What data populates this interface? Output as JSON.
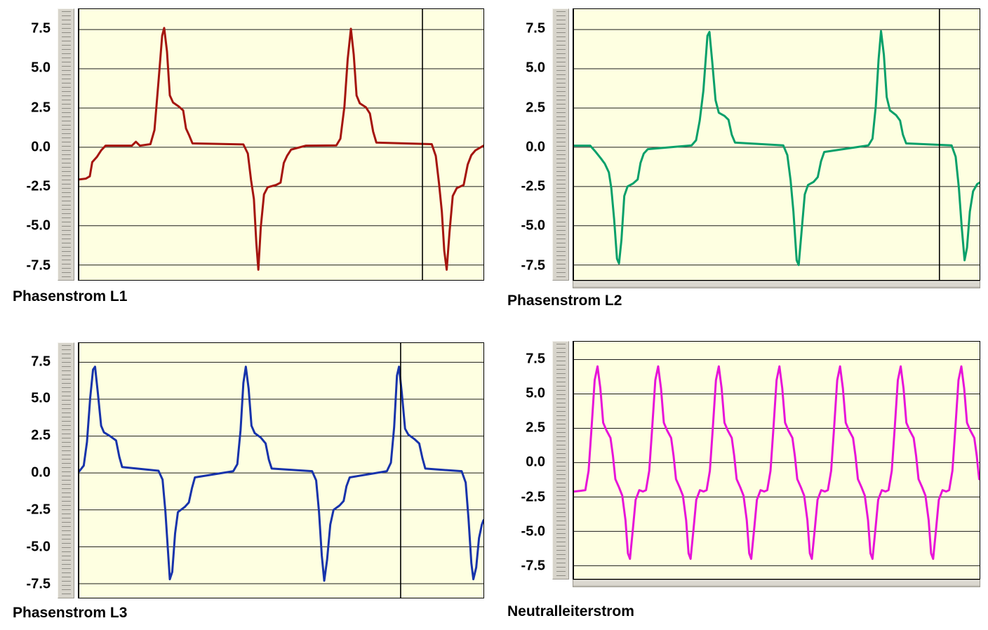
{
  "page": {
    "background": "#ffffff",
    "grid_line_color": "#1b1b1b",
    "plot_background": "#feffe1"
  },
  "chart_data": [
    {
      "type": "line",
      "title": "Phasenstrom L1",
      "color": "#a5150f",
      "plot_background": "#feffe1",
      "ylim": [
        -8.45,
        8.8
      ],
      "yticks": [
        7.5,
        5.0,
        2.5,
        0.0,
        -2.5,
        -5.0,
        -7.5
      ],
      "ytick_labels": [
        "7.5",
        "5.0",
        "2.5",
        "0.0",
        "-2.5",
        "-5.0",
        "-7.5"
      ],
      "xlabel": "",
      "ylabel": "",
      "grid": true,
      "legend": "none",
      "cursor_x_pct": 84.9,
      "bottom_strip": false,
      "points": [
        [
          0,
          -2.05
        ],
        [
          1.6,
          -2.0
        ],
        [
          2.6,
          -1.85
        ],
        [
          3.2,
          -0.95
        ],
        [
          4.4,
          -0.6
        ],
        [
          5.4,
          -0.2
        ],
        [
          6.5,
          0.1
        ],
        [
          13,
          0.1
        ],
        [
          14,
          0.35
        ],
        [
          15,
          0.1
        ],
        [
          17.6,
          0.2
        ],
        [
          18.6,
          1.1
        ],
        [
          19.6,
          4.2
        ],
        [
          20.5,
          7.1
        ],
        [
          21,
          7.6
        ],
        [
          21.7,
          6.1
        ],
        [
          22.4,
          3.3
        ],
        [
          23.2,
          2.85
        ],
        [
          24.6,
          2.6
        ],
        [
          25.7,
          2.35
        ],
        [
          26.4,
          1.2
        ],
        [
          27.2,
          0.75
        ],
        [
          28,
          0.25
        ],
        [
          40.6,
          0.18
        ],
        [
          41.7,
          -0.4
        ],
        [
          42.5,
          -2.1
        ],
        [
          43.2,
          -3.3
        ],
        [
          43.8,
          -6.1
        ],
        [
          44.3,
          -7.8
        ],
        [
          44.9,
          -5.1
        ],
        [
          45.7,
          -3.0
        ],
        [
          46.6,
          -2.55
        ],
        [
          48.7,
          -2.4
        ],
        [
          49.8,
          -2.25
        ],
        [
          50.6,
          -1.0
        ],
        [
          51.4,
          -0.55
        ],
        [
          52.4,
          -0.15
        ],
        [
          56,
          0.1
        ],
        [
          63.6,
          0.12
        ],
        [
          64.6,
          0.55
        ],
        [
          65.6,
          2.6
        ],
        [
          66.4,
          5.6
        ],
        [
          67.2,
          7.55
        ],
        [
          67.9,
          5.9
        ],
        [
          68.6,
          3.3
        ],
        [
          69.4,
          2.8
        ],
        [
          70.9,
          2.55
        ],
        [
          71.9,
          2.15
        ],
        [
          72.7,
          1.0
        ],
        [
          73.5,
          0.3
        ],
        [
          87.2,
          0.2
        ],
        [
          88.2,
          -0.55
        ],
        [
          89,
          -2.3
        ],
        [
          89.7,
          -4.1
        ],
        [
          90.3,
          -6.6
        ],
        [
          90.9,
          -7.8
        ],
        [
          91.6,
          -5.4
        ],
        [
          92.4,
          -3.1
        ],
        [
          93.4,
          -2.6
        ],
        [
          95.1,
          -2.4
        ],
        [
          96.1,
          -1.1
        ],
        [
          97,
          -0.5
        ],
        [
          98,
          -0.2
        ],
        [
          100,
          0.1
        ]
      ]
    },
    {
      "type": "line",
      "title": "Phasenstrom L2",
      "color": "#08a06a",
      "plot_background": "#feffe1",
      "ylim": [
        -8.45,
        8.8
      ],
      "yticks": [
        7.5,
        5.0,
        2.5,
        0.0,
        -2.5,
        -5.0,
        -7.5
      ],
      "ytick_labels": [
        "7.5",
        "5.0",
        "2.5",
        "0.0",
        "-2.5",
        "-5.0",
        "-7.5"
      ],
      "xlabel": "",
      "ylabel": "",
      "grid": true,
      "legend": "none",
      "cursor_x_pct": 90.1,
      "bottom_strip": true,
      "points": [
        [
          0,
          0.1
        ],
        [
          4,
          0.1
        ],
        [
          5.2,
          -0.25
        ],
        [
          6.6,
          -0.7
        ],
        [
          7.6,
          -1.05
        ],
        [
          8.6,
          -1.6
        ],
        [
          9.2,
          -2.6
        ],
        [
          9.9,
          -4.6
        ],
        [
          10.6,
          -7.1
        ],
        [
          11.1,
          -7.4
        ],
        [
          11.7,
          -5.9
        ],
        [
          12.4,
          -3.1
        ],
        [
          13.2,
          -2.5
        ],
        [
          14.6,
          -2.3
        ],
        [
          15.7,
          -2.05
        ],
        [
          16.4,
          -1.0
        ],
        [
          17.2,
          -0.4
        ],
        [
          18.2,
          -0.12
        ],
        [
          29,
          0.12
        ],
        [
          30.1,
          0.45
        ],
        [
          31,
          1.7
        ],
        [
          31.9,
          3.6
        ],
        [
          32.9,
          7.1
        ],
        [
          33.4,
          7.35
        ],
        [
          34.1,
          5.4
        ],
        [
          34.9,
          3.0
        ],
        [
          35.7,
          2.2
        ],
        [
          37.1,
          2.0
        ],
        [
          38.1,
          1.75
        ],
        [
          38.9,
          0.8
        ],
        [
          39.7,
          0.3
        ],
        [
          51.6,
          0.12
        ],
        [
          52.6,
          -0.5
        ],
        [
          53.4,
          -2.1
        ],
        [
          54.1,
          -4.1
        ],
        [
          54.9,
          -7.2
        ],
        [
          55.4,
          -7.5
        ],
        [
          56.1,
          -5.4
        ],
        [
          56.9,
          -3.0
        ],
        [
          57.7,
          -2.4
        ],
        [
          59.1,
          -2.2
        ],
        [
          60.1,
          -1.9
        ],
        [
          60.9,
          -0.9
        ],
        [
          61.7,
          -0.3
        ],
        [
          72.6,
          0.12
        ],
        [
          73.6,
          0.55
        ],
        [
          74.4,
          2.6
        ],
        [
          75.1,
          5.6
        ],
        [
          75.7,
          7.4
        ],
        [
          76.4,
          5.9
        ],
        [
          77.1,
          3.2
        ],
        [
          77.9,
          2.35
        ],
        [
          79.4,
          2.05
        ],
        [
          80.4,
          1.7
        ],
        [
          81.1,
          0.8
        ],
        [
          81.9,
          0.25
        ],
        [
          93.1,
          0.12
        ],
        [
          94.1,
          -0.6
        ],
        [
          94.9,
          -2.6
        ],
        [
          95.6,
          -5.1
        ],
        [
          96.3,
          -7.2
        ],
        [
          96.9,
          -6.4
        ],
        [
          97.6,
          -4.1
        ],
        [
          98.4,
          -2.8
        ],
        [
          99.4,
          -2.35
        ],
        [
          100,
          -2.25
        ]
      ]
    },
    {
      "type": "line",
      "title": "Phasenstrom L3",
      "color": "#1733ab",
      "plot_background": "#feffe1",
      "ylim": [
        -8.45,
        8.8
      ],
      "yticks": [
        7.5,
        5.0,
        2.5,
        0.0,
        -2.5,
        -5.0,
        -7.5
      ],
      "ytick_labels": [
        "7.5",
        "5.0",
        "2.5",
        "0.0",
        "-2.5",
        "-5.0",
        "-7.5"
      ],
      "xlabel": "",
      "ylabel": "",
      "grid": true,
      "legend": "none",
      "cursor_x_pct": 79.5,
      "bottom_strip": false,
      "points": [
        [
          0,
          0.12
        ],
        [
          1.1,
          0.5
        ],
        [
          1.9,
          2.1
        ],
        [
          2.7,
          5.1
        ],
        [
          3.4,
          7.0
        ],
        [
          3.9,
          7.2
        ],
        [
          4.6,
          5.4
        ],
        [
          5.4,
          3.2
        ],
        [
          6.1,
          2.75
        ],
        [
          7.6,
          2.5
        ],
        [
          9.1,
          2.2
        ],
        [
          9.9,
          1.1
        ],
        [
          10.6,
          0.4
        ],
        [
          19.6,
          0.15
        ],
        [
          20.6,
          -0.45
        ],
        [
          21.3,
          -2.6
        ],
        [
          21.9,
          -5.1
        ],
        [
          22.4,
          -7.2
        ],
        [
          23,
          -6.7
        ],
        [
          23.7,
          -4.1
        ],
        [
          24.4,
          -2.65
        ],
        [
          26.1,
          -2.3
        ],
        [
          27.1,
          -2.0
        ],
        [
          27.9,
          -1.0
        ],
        [
          28.6,
          -0.3
        ],
        [
          38.1,
          0.12
        ],
        [
          39.1,
          0.6
        ],
        [
          39.9,
          2.9
        ],
        [
          40.6,
          6.1
        ],
        [
          41.2,
          7.2
        ],
        [
          41.9,
          5.7
        ],
        [
          42.6,
          3.2
        ],
        [
          43.4,
          2.7
        ],
        [
          44.9,
          2.4
        ],
        [
          46.1,
          2.0
        ],
        [
          46.9,
          0.9
        ],
        [
          47.6,
          0.3
        ],
        [
          57.6,
          0.12
        ],
        [
          58.6,
          -0.5
        ],
        [
          59.3,
          -2.6
        ],
        [
          60,
          -5.6
        ],
        [
          60.6,
          -7.3
        ],
        [
          61.3,
          -5.9
        ],
        [
          62.1,
          -3.5
        ],
        [
          62.9,
          -2.5
        ],
        [
          64.4,
          -2.2
        ],
        [
          65.4,
          -1.9
        ],
        [
          66.1,
          -0.9
        ],
        [
          66.9,
          -0.3
        ],
        [
          76.1,
          0.12
        ],
        [
          77.1,
          0.7
        ],
        [
          77.9,
          3.1
        ],
        [
          78.6,
          6.6
        ],
        [
          79.1,
          7.2
        ],
        [
          79.8,
          5.4
        ],
        [
          80.6,
          3.0
        ],
        [
          81.4,
          2.6
        ],
        [
          82.9,
          2.3
        ],
        [
          84.1,
          2.0
        ],
        [
          84.9,
          1.0
        ],
        [
          85.6,
          0.3
        ],
        [
          94.6,
          0.12
        ],
        [
          95.6,
          -0.65
        ],
        [
          96.3,
          -3.1
        ],
        [
          97,
          -6.1
        ],
        [
          97.5,
          -7.2
        ],
        [
          98.2,
          -6.4
        ],
        [
          98.9,
          -4.4
        ],
        [
          99.6,
          -3.5
        ],
        [
          100,
          -3.2
        ]
      ]
    },
    {
      "type": "line",
      "title": "Neutralleiterstrom",
      "color": "#e714d8",
      "plot_background": "#feffe1",
      "ylim": [
        -8.45,
        8.8
      ],
      "yticks": [
        7.5,
        5.0,
        2.5,
        0.0,
        -2.5,
        -5.0,
        -7.5
      ],
      "ytick_labels": [
        "7.5",
        "5.0",
        "2.5",
        "0.0",
        "-2.5",
        "-5.0",
        "-7.5"
      ],
      "xlabel": "",
      "ylabel": "",
      "grid": true,
      "legend": "none",
      "cursor_x_pct": null,
      "bottom_strip": true,
      "lead_points": [
        [
          0,
          -2.1
        ],
        [
          1.6,
          -2.05
        ]
      ],
      "cycle": [
        [
          -3.0,
          -2.0
        ],
        [
          -2.2,
          -0.6
        ],
        [
          -1.5,
          2.4
        ],
        [
          -0.7,
          6.0
        ],
        [
          0,
          7.0
        ],
        [
          0.7,
          5.4
        ],
        [
          1.4,
          2.9
        ],
        [
          2.2,
          2.35
        ],
        [
          3.2,
          1.8
        ],
        [
          3.8,
          0.5
        ],
        [
          4.4,
          -1.2
        ],
        [
          5.3,
          -1.8
        ],
        [
          6.1,
          -2.4
        ],
        [
          6.9,
          -4.2
        ],
        [
          7.5,
          -6.6
        ],
        [
          8.0,
          -7.0
        ],
        [
          8.7,
          -4.9
        ],
        [
          9.4,
          -2.7
        ],
        [
          10.3,
          -2.0
        ],
        [
          11.2,
          -2.1
        ]
      ],
      "cycle_peaks_x": [
        5.8,
        20.75,
        35.7,
        50.65,
        65.6,
        80.55,
        95.5
      ]
    }
  ]
}
